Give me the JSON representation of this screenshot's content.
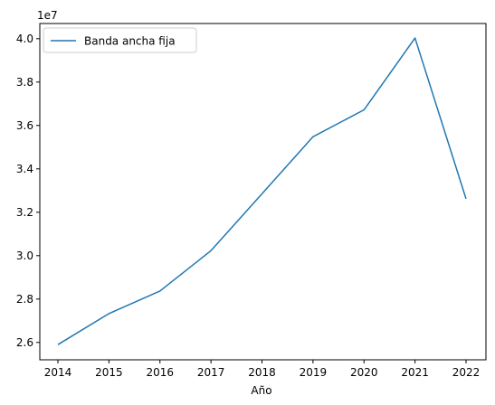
{
  "chart_data": {
    "type": "line",
    "xlabel": "Año",
    "ylabel": "",
    "offset_label": "1e7",
    "categories": [
      "2014",
      "2015",
      "2016",
      "2017",
      "2018",
      "2019",
      "2020",
      "2021",
      "2022"
    ],
    "series": [
      {
        "name": "Banda ancha fija",
        "color": "#1f77b4",
        "values": [
          25900000,
          27330000,
          28370000,
          30230000,
          32850000,
          35480000,
          36720000,
          40030000,
          32620000
        ]
      }
    ],
    "yticks": [
      26000000,
      28000000,
      30000000,
      32000000,
      34000000,
      36000000,
      38000000,
      40000000
    ],
    "ytick_labels": [
      "2.6",
      "2.8",
      "3.0",
      "3.2",
      "3.4",
      "3.6",
      "3.8",
      "4.0"
    ],
    "ylim": [
      25200000,
      40700000
    ],
    "grid": false,
    "legend_position": "upper-left"
  }
}
